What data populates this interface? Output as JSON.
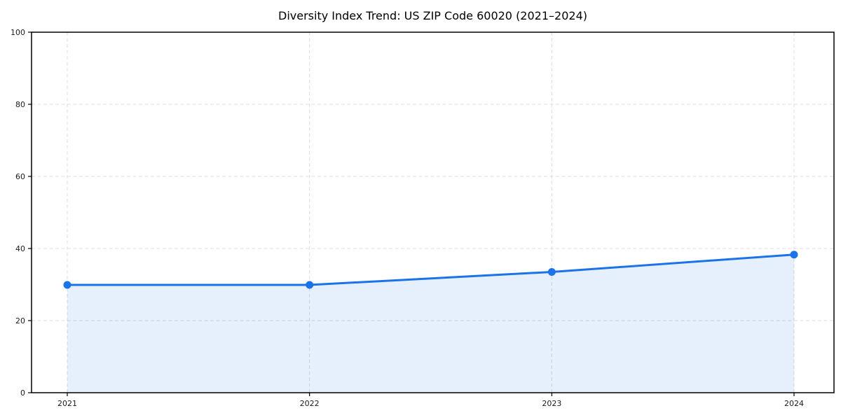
{
  "chart_data": {
    "type": "area",
    "title": "Diversity Index Trend: US ZIP Code 60020 (2021–2024)",
    "categories": [
      "2021",
      "2022",
      "2023",
      "2024"
    ],
    "series": [
      {
        "name": "Diversity Index",
        "values": [
          29.9,
          29.9,
          33.5,
          38.3
        ]
      }
    ],
    "xlabel": "",
    "ylabel": "",
    "ylim": [
      0,
      100
    ],
    "yticks": [
      0,
      20,
      40,
      60,
      80,
      100
    ],
    "grid": "dashed",
    "legend": "none",
    "colors": {
      "line": "#1a73e8",
      "marker": "#1a73e8",
      "fill": "#1a73e8",
      "fill_opacity": "0.11",
      "gridline": "#dcdcdc",
      "axis": "#000000",
      "tick_text": "#1a1a1a",
      "background": "#ffffff"
    }
  }
}
